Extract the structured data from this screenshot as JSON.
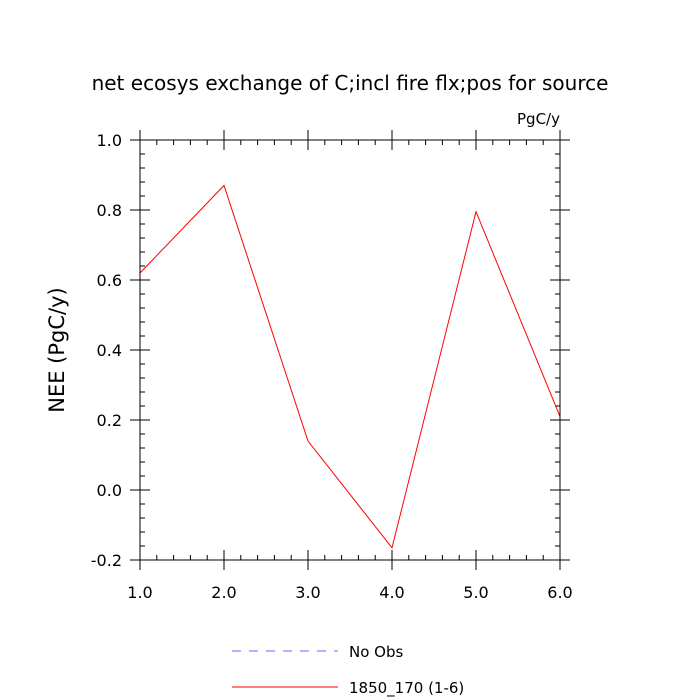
{
  "chart_data": {
    "type": "line",
    "title": "net ecosys exchange of C;incl fire flx;pos for source",
    "units": "PgC/y",
    "ylabel": "NEE  (PgC/y)",
    "xlabel": "",
    "xlim": [
      1.0,
      6.0
    ],
    "ylim": [
      -0.2,
      1.0
    ],
    "x_ticks": [
      "1.0",
      "2.0",
      "3.0",
      "4.0",
      "5.0",
      "6.0"
    ],
    "y_ticks": [
      "-0.2",
      "0.0",
      "0.2",
      "0.4",
      "0.6",
      "0.8",
      "1.0"
    ],
    "x_tick_values": [
      1.0,
      2.0,
      3.0,
      4.0,
      5.0,
      6.0
    ],
    "y_tick_values": [
      -0.2,
      0.0,
      0.2,
      0.4,
      0.6,
      0.8,
      1.0
    ],
    "grid": false,
    "legend_position": "bottom",
    "series": [
      {
        "name": "1850_170 (1-6)",
        "color": "#ff0000",
        "dash": "solid",
        "x": [
          1.0,
          2.0,
          3.0,
          4.0,
          5.0,
          6.0
        ],
        "values": [
          0.62,
          0.87,
          0.14,
          -0.165,
          0.795,
          0.21
        ]
      }
    ],
    "legend": [
      {
        "label": "No Obs",
        "color": "#6666ff",
        "dash": "dashed"
      },
      {
        "label": "1850_170 (1-6)",
        "color": "#ff0000",
        "dash": "solid"
      }
    ]
  }
}
